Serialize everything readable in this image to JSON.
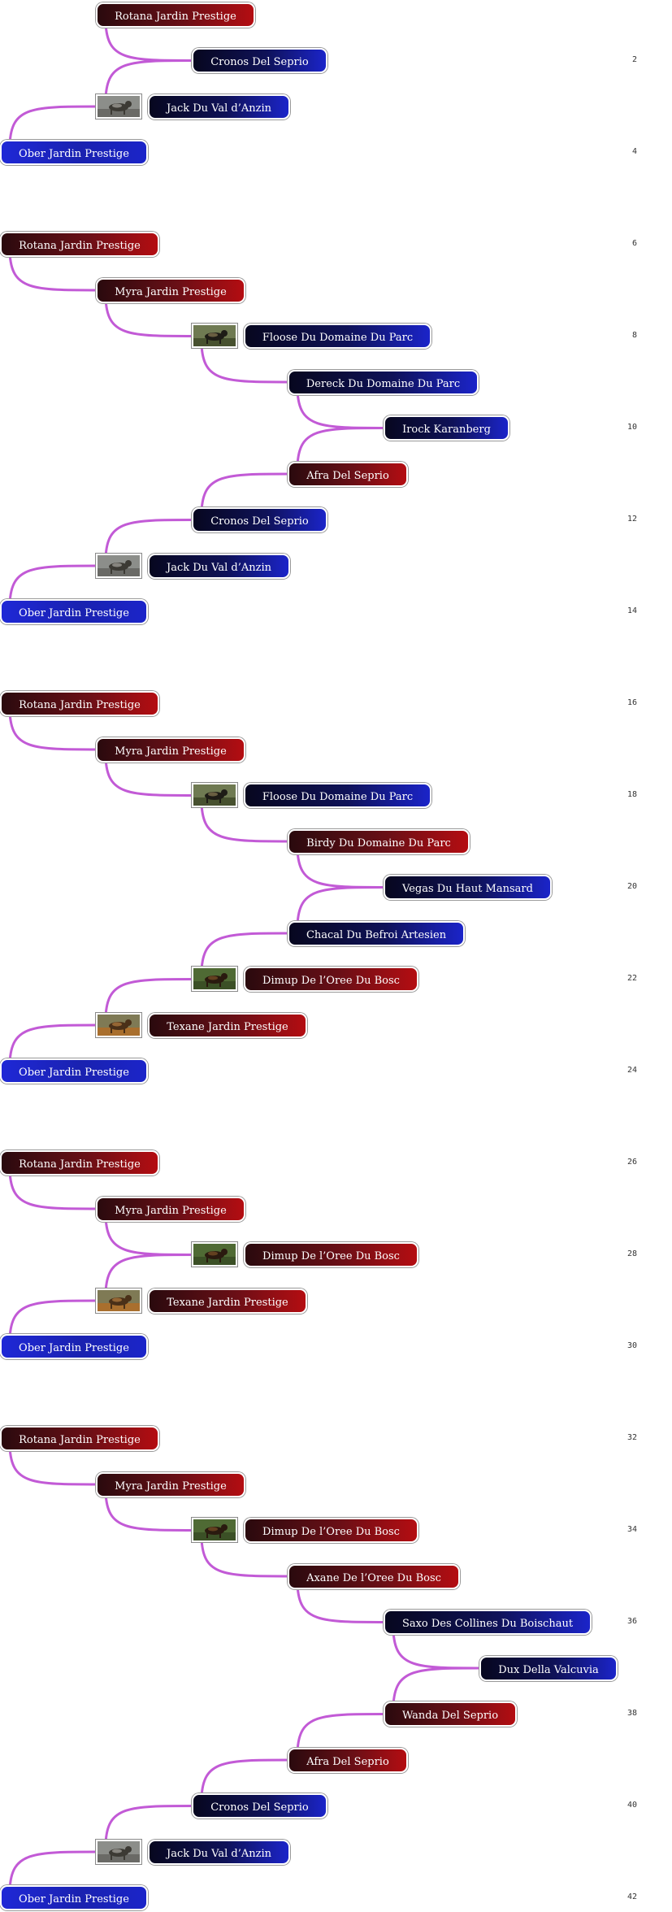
{
  "line_color": "#c25ad6",
  "sections": [
    {
      "rows": [
        {
          "node": "Rotana Jardin Prestige",
          "color": "red",
          "depth": 1
        },
        {
          "node": "Cronos Del Seprio",
          "color": "blue",
          "depth": 2,
          "number": "2"
        },
        {
          "node": "Jack Du Val d’Anzin",
          "color": "blue",
          "depth": 1,
          "photo": "dog-photo-grey"
        },
        {
          "node": "Ober Jardin Prestige",
          "color": "blue",
          "depth": 0,
          "number": "4",
          "bright": true
        }
      ]
    },
    {
      "rows": [
        {
          "node": "Rotana Jardin Prestige",
          "color": "red",
          "depth": 0,
          "number": "6"
        },
        {
          "node": "Myra Jardin Prestige",
          "color": "red",
          "depth": 1
        },
        {
          "node": "Floose Du Domaine Du Parc",
          "color": "blue",
          "depth": 2,
          "number": "8",
          "photo": "dog-photo-standing"
        },
        {
          "node": "Dereck Du Domaine Du Parc",
          "color": "blue",
          "depth": 3
        },
        {
          "node": "Irock Karanberg",
          "color": "blue",
          "depth": 4,
          "number": "10"
        },
        {
          "node": "Afra Del Seprio",
          "color": "red",
          "depth": 3
        },
        {
          "node": "Cronos Del Seprio",
          "color": "blue",
          "depth": 2,
          "number": "12"
        },
        {
          "node": "Jack Du Val d’Anzin",
          "color": "blue",
          "depth": 1,
          "photo": "dog-photo-grey"
        },
        {
          "node": "Ober Jardin Prestige",
          "color": "blue",
          "depth": 0,
          "number": "14",
          "bright": true
        }
      ]
    },
    {
      "rows": [
        {
          "node": "Rotana Jardin Prestige",
          "color": "red",
          "depth": 0,
          "number": "16"
        },
        {
          "node": "Myra Jardin Prestige",
          "color": "red",
          "depth": 1
        },
        {
          "node": "Floose Du Domaine Du Parc",
          "color": "blue",
          "depth": 2,
          "number": "18",
          "photo": "dog-photo-standing"
        },
        {
          "node": "Birdy Du Domaine Du Parc",
          "color": "red",
          "depth": 3
        },
        {
          "node": "Vegas Du Haut Mansard",
          "color": "blue",
          "depth": 4,
          "number": "20"
        },
        {
          "node": "Chacal Du Befroi Artesien",
          "color": "blue",
          "depth": 3
        },
        {
          "node": "Dimup De l’Oree Du Bosc",
          "color": "red",
          "depth": 2,
          "number": "22",
          "photo": "dog-photo-grass"
        },
        {
          "node": "Texane Jardin Prestige",
          "color": "red",
          "depth": 1,
          "photo": "dog-photo-brown"
        },
        {
          "node": "Ober Jardin Prestige",
          "color": "blue",
          "depth": 0,
          "number": "24",
          "bright": true
        }
      ]
    },
    {
      "rows": [
        {
          "node": "Rotana Jardin Prestige",
          "color": "red",
          "depth": 0,
          "number": "26"
        },
        {
          "node": "Myra Jardin Prestige",
          "color": "red",
          "depth": 1
        },
        {
          "node": "Dimup De l’Oree Du Bosc",
          "color": "red",
          "depth": 2,
          "number": "28",
          "photo": "dog-photo-grass"
        },
        {
          "node": "Texane Jardin Prestige",
          "color": "red",
          "depth": 1,
          "photo": "dog-photo-brown"
        },
        {
          "node": "Ober Jardin Prestige",
          "color": "blue",
          "depth": 0,
          "number": "30",
          "bright": true
        }
      ]
    },
    {
      "rows": [
        {
          "node": "Rotana Jardin Prestige",
          "color": "red",
          "depth": 0,
          "number": "32"
        },
        {
          "node": "Myra Jardin Prestige",
          "color": "red",
          "depth": 1
        },
        {
          "node": "Dimup De l’Oree Du Bosc",
          "color": "red",
          "depth": 2,
          "number": "34",
          "photo": "dog-photo-grass"
        },
        {
          "node": "Axane De l’Oree Du Bosc",
          "color": "red",
          "depth": 3
        },
        {
          "node": "Saxo Des Collines Du Boischaut",
          "color": "blue",
          "depth": 4,
          "number": "36"
        },
        {
          "node": "Dux Della Valcuvia",
          "color": "blue",
          "depth": 5
        },
        {
          "node": "Wanda Del Seprio",
          "color": "red",
          "depth": 4,
          "number": "38"
        },
        {
          "node": "Afra Del Seprio",
          "color": "red",
          "depth": 3
        },
        {
          "node": "Cronos Del Seprio",
          "color": "blue",
          "depth": 2,
          "number": "40"
        },
        {
          "node": "Jack Du Val d’Anzin",
          "color": "blue",
          "depth": 1,
          "photo": "dog-photo-grey"
        },
        {
          "node": "Ober Jardin Prestige",
          "color": "blue",
          "depth": 0,
          "number": "42",
          "bright": true
        }
      ]
    }
  ]
}
